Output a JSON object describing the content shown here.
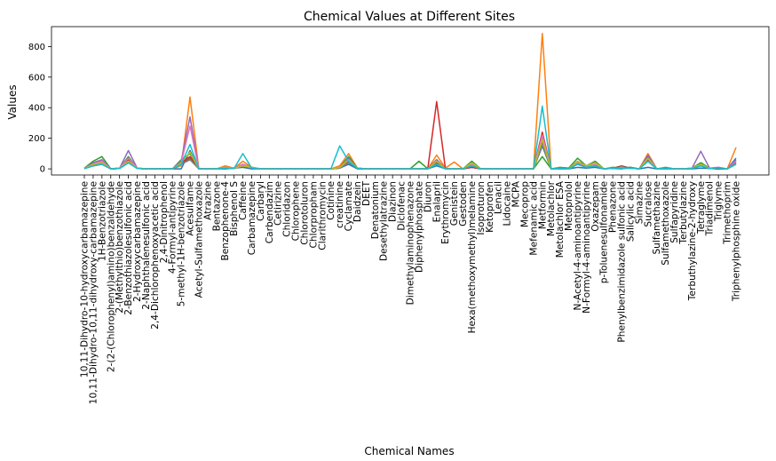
{
  "chart_data": {
    "type": "line",
    "title": "Chemical Values at Different Sites",
    "xlabel": "Chemical Names",
    "ylabel": "Values",
    "ylim": [
      -40,
      930
    ],
    "yticks": [
      0,
      200,
      400,
      600,
      800
    ],
    "grid": false,
    "legend": "none",
    "categories": [
      "10,11-Dihydro-10-hydroxycarbamazepine",
      "10,11-Dihydro-10,11-dihydroxy-carbamazepine",
      "1H-Benzotriazole",
      "2-(2-(Chlorophenyl)amino)benzaldehyde",
      "2-(Methylthio)benzothiazole",
      "2-Benzothiazolesulfonic acid",
      "2-Hydroxycarbamazepine",
      "2-Naphthalenesulfonic acid",
      "2,4-Dichlorophenoxyacetic acid",
      "2,4-Dinitrophenol",
      "4-Formyl-antipyrine",
      "5-methyl-1H-benzotriazole",
      "Acesulfame",
      "Acetyl-Sulfamethoxazole",
      "Atrazine",
      "Bentazone",
      "Benzophenone-4",
      "Bisphenol S",
      "Caffeine",
      "Carbamazepine",
      "Carbaryl",
      "Carbendazim",
      "Cetirizine",
      "Chloridazon",
      "Chlorophene",
      "Chlorotoluron",
      "Chlorpropham",
      "Clarithromycin",
      "Cotinine",
      "creatinine",
      "Cyclamate",
      "Daidzein",
      "DEET",
      "Denatonium",
      "Desethylatrazine",
      "Diazinon",
      "Diclofenac",
      "Dimethylaminophenazone",
      "Diphenylphosphate",
      "Diuron",
      "Enalapril",
      "Erythromycin",
      "Genistein",
      "Gestoden",
      "Hexa(methoxymethyl)melamine",
      "Isoproturon",
      "Ketoprofen",
      "Lenacil",
      "Lidocaine",
      "MCPA",
      "Mecoprop",
      "Mefenamic acid",
      "Metformin",
      "Metolachlor",
      "Metolachlor ESA",
      "Metoprolol",
      "N-Acetyl-4-aminoantipyrine",
      "N-Formyl-4-aminoantipyrine",
      "Oxazepam",
      "p-Toluenesulfonamide",
      "Phenazone",
      "Phenylbenzimidazole sulfonic acid",
      "Salicylic acid",
      "Simazine",
      "Sucralose",
      "Sulfamethazine",
      "Sulfamethoxazole",
      "Sulfapyridine",
      "Terbutylazine",
      "Terbuthylazine-2-hydroxy",
      "Tetraglyme",
      "Triadimenol",
      "Triglyme",
      "Trimethoprim",
      "Triphenylphosphine oxide"
    ],
    "series": [
      {
        "color": "#1f77b4",
        "values": [
          3,
          20,
          30,
          0,
          3,
          40,
          5,
          0,
          0,
          0,
          0,
          0,
          120,
          0,
          0,
          0,
          0,
          5,
          10,
          0,
          0,
          0,
          0,
          0,
          0,
          0,
          0,
          0,
          0,
          5,
          30,
          0,
          0,
          0,
          0,
          0,
          0,
          0,
          0,
          0,
          20,
          0,
          0,
          0,
          10,
          0,
          0,
          0,
          0,
          0,
          0,
          0,
          150,
          0,
          0,
          0,
          10,
          5,
          10,
          0,
          3,
          0,
          10,
          0,
          10,
          0,
          0,
          0,
          0,
          0,
          5,
          3,
          0,
          0,
          70
        ]
      },
      {
        "color": "#ff7f0e",
        "values": [
          5,
          40,
          60,
          0,
          5,
          60,
          5,
          0,
          0,
          0,
          0,
          20,
          470,
          0,
          0,
          0,
          20,
          5,
          50,
          10,
          0,
          0,
          0,
          0,
          0,
          0,
          0,
          0,
          0,
          20,
          100,
          5,
          0,
          0,
          0,
          0,
          0,
          0,
          0,
          0,
          90,
          5,
          45,
          0,
          20,
          0,
          0,
          0,
          0,
          0,
          0,
          0,
          885,
          0,
          5,
          0,
          40,
          20,
          30,
          0,
          5,
          10,
          5,
          0,
          100,
          0,
          5,
          0,
          0,
          0,
          30,
          5,
          0,
          0,
          140
        ]
      },
      {
        "color": "#2ca02c",
        "values": [
          5,
          50,
          80,
          0,
          5,
          80,
          5,
          0,
          0,
          0,
          0,
          60,
          100,
          0,
          0,
          0,
          10,
          5,
          20,
          10,
          0,
          0,
          0,
          0,
          0,
          0,
          0,
          0,
          0,
          10,
          80,
          5,
          0,
          0,
          0,
          0,
          0,
          0,
          50,
          0,
          60,
          0,
          0,
          0,
          50,
          0,
          0,
          0,
          0,
          0,
          0,
          0,
          80,
          0,
          10,
          5,
          70,
          20,
          50,
          0,
          10,
          5,
          10,
          0,
          80,
          0,
          10,
          0,
          0,
          5,
          40,
          5,
          0,
          0,
          30
        ]
      },
      {
        "color": "#d62728",
        "values": [
          2,
          30,
          50,
          0,
          3,
          60,
          3,
          0,
          0,
          0,
          0,
          40,
          80,
          0,
          0,
          0,
          5,
          3,
          30,
          10,
          0,
          0,
          0,
          0,
          0,
          0,
          0,
          0,
          0,
          10,
          60,
          3,
          0,
          0,
          0,
          0,
          0,
          0,
          0,
          0,
          440,
          0,
          0,
          0,
          10,
          0,
          0,
          0,
          0,
          0,
          0,
          0,
          240,
          0,
          5,
          0,
          40,
          10,
          20,
          0,
          5,
          3,
          5,
          0,
          60,
          0,
          5,
          0,
          0,
          3,
          20,
          3,
          0,
          0,
          50
        ]
      },
      {
        "color": "#9467bd",
        "values": [
          3,
          40,
          60,
          0,
          5,
          120,
          5,
          0,
          0,
          0,
          0,
          50,
          340,
          0,
          0,
          0,
          10,
          5,
          30,
          10,
          0,
          0,
          0,
          0,
          0,
          0,
          0,
          0,
          0,
          10,
          70,
          5,
          0,
          0,
          0,
          0,
          0,
          0,
          0,
          0,
          60,
          0,
          0,
          0,
          30,
          0,
          0,
          0,
          0,
          0,
          0,
          0,
          200,
          0,
          5,
          0,
          50,
          20,
          40,
          0,
          5,
          5,
          5,
          0,
          90,
          0,
          5,
          0,
          0,
          5,
          115,
          5,
          10,
          0,
          60
        ]
      },
      {
        "color": "#8c564b",
        "values": [
          2,
          20,
          40,
          0,
          3,
          50,
          3,
          0,
          0,
          0,
          0,
          30,
          70,
          0,
          0,
          0,
          5,
          3,
          20,
          5,
          0,
          0,
          0,
          0,
          0,
          0,
          0,
          0,
          0,
          5,
          50,
          3,
          0,
          0,
          0,
          0,
          0,
          0,
          0,
          0,
          40,
          0,
          0,
          0,
          20,
          0,
          0,
          0,
          0,
          0,
          0,
          0,
          170,
          0,
          5,
          0,
          30,
          10,
          20,
          0,
          5,
          20,
          5,
          0,
          50,
          0,
          5,
          0,
          0,
          3,
          20,
          3,
          5,
          0,
          40
        ]
      },
      {
        "color": "#e377c2",
        "values": [
          3,
          30,
          50,
          0,
          5,
          70,
          5,
          0,
          0,
          0,
          0,
          40,
          280,
          0,
          0,
          0,
          10,
          5,
          30,
          10,
          0,
          0,
          0,
          0,
          0,
          0,
          0,
          0,
          0,
          10,
          60,
          5,
          0,
          0,
          0,
          0,
          0,
          0,
          0,
          0,
          50,
          0,
          0,
          0,
          30,
          0,
          0,
          0,
          0,
          0,
          0,
          0,
          220,
          0,
          5,
          0,
          40,
          20,
          30,
          0,
          5,
          5,
          5,
          0,
          70,
          0,
          5,
          0,
          0,
          5,
          30,
          5,
          5,
          0,
          50
        ]
      },
      {
        "color": "#7f7f7f",
        "values": [
          2,
          20,
          30,
          0,
          3,
          40,
          3,
          0,
          0,
          0,
          0,
          30,
          60,
          0,
          0,
          0,
          5,
          3,
          20,
          5,
          0,
          0,
          0,
          0,
          0,
          0,
          0,
          0,
          0,
          5,
          40,
          3,
          0,
          0,
          0,
          0,
          0,
          0,
          0,
          0,
          30,
          0,
          0,
          0,
          20,
          0,
          0,
          0,
          0,
          0,
          0,
          0,
          160,
          0,
          5,
          0,
          30,
          10,
          20,
          0,
          5,
          3,
          5,
          0,
          50,
          0,
          5,
          0,
          0,
          3,
          20,
          3,
          5,
          0,
          40
        ]
      },
      {
        "color": "#bcbd22",
        "values": [
          3,
          30,
          40,
          0,
          5,
          50,
          5,
          0,
          0,
          0,
          0,
          40,
          110,
          0,
          0,
          0,
          10,
          5,
          20,
          10,
          0,
          0,
          0,
          0,
          0,
          0,
          0,
          0,
          0,
          10,
          60,
          5,
          0,
          0,
          0,
          0,
          0,
          0,
          0,
          0,
          50,
          0,
          0,
          0,
          40,
          0,
          0,
          0,
          0,
          0,
          0,
          0,
          190,
          0,
          5,
          0,
          50,
          20,
          40,
          0,
          5,
          5,
          5,
          0,
          70,
          0,
          5,
          0,
          0,
          5,
          30,
          5,
          5,
          0,
          30
        ]
      },
      {
        "color": "#17becf",
        "values": [
          2,
          20,
          30,
          0,
          3,
          40,
          3,
          0,
          0,
          0,
          0,
          30,
          160,
          0,
          0,
          0,
          5,
          3,
          100,
          5,
          0,
          0,
          0,
          0,
          0,
          0,
          0,
          0,
          0,
          150,
          50,
          3,
          0,
          0,
          0,
          0,
          0,
          0,
          0,
          0,
          30,
          0,
          0,
          0,
          20,
          0,
          0,
          0,
          0,
          0,
          0,
          0,
          410,
          0,
          5,
          0,
          30,
          10,
          20,
          0,
          5,
          3,
          5,
          0,
          50,
          0,
          5,
          0,
          0,
          3,
          20,
          3,
          5,
          0,
          30
        ]
      }
    ]
  }
}
